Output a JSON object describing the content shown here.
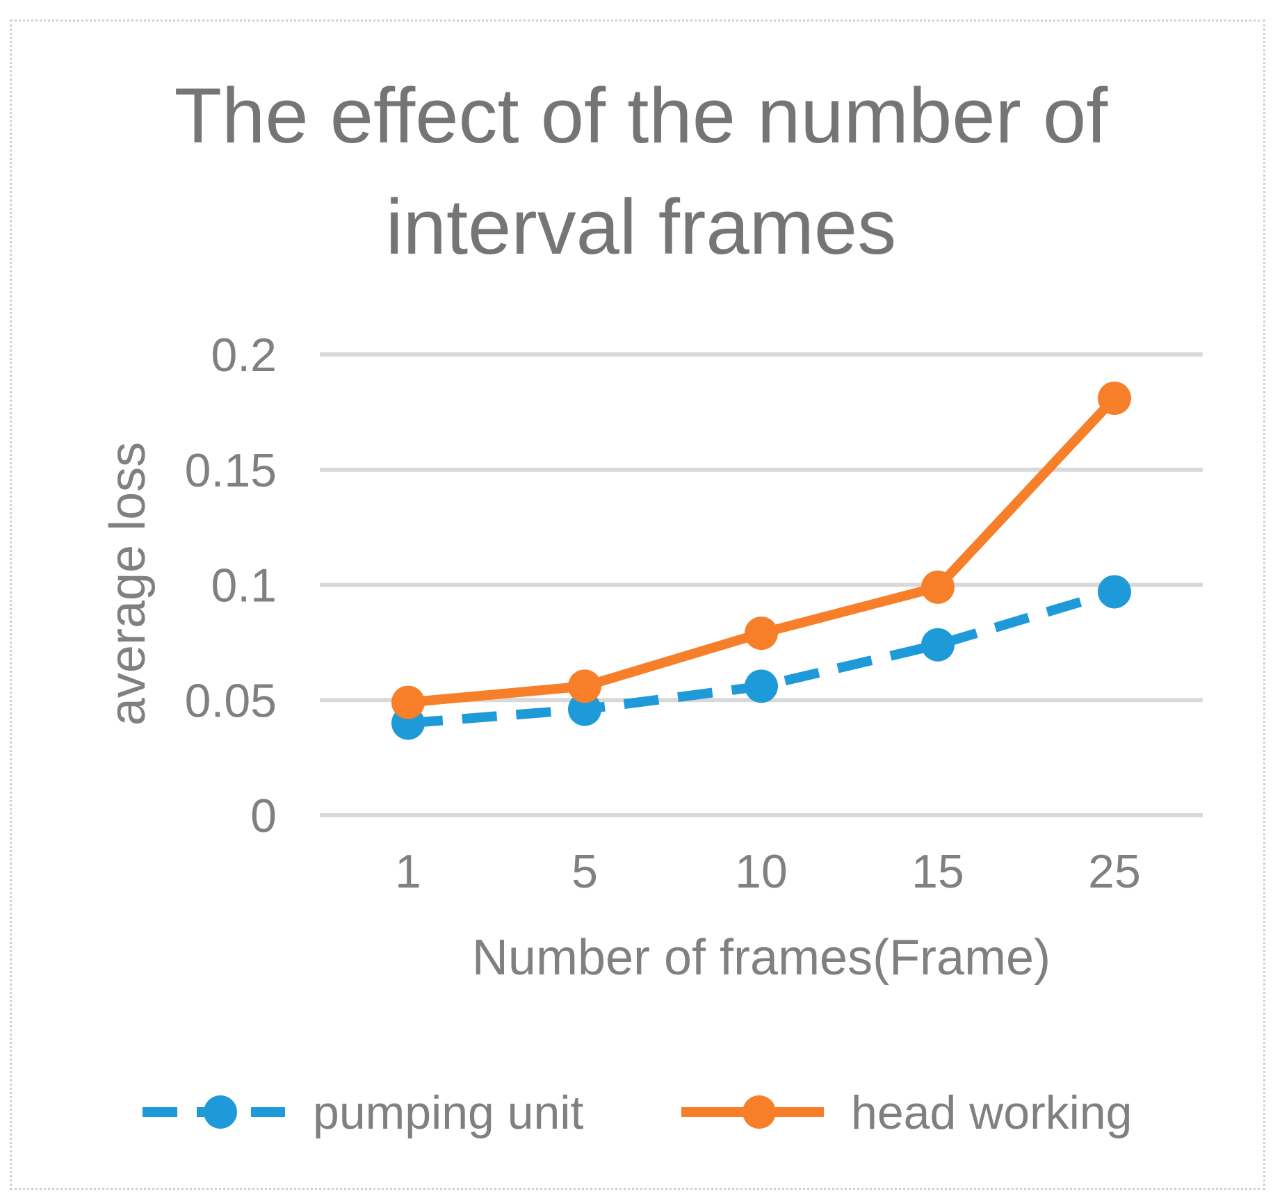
{
  "chart_data": {
    "type": "line",
    "title": "The effect of the number of interval frames",
    "title_lines": [
      "The effect of the number of",
      "interval frames"
    ],
    "xlabel": "Number of frames(Frame)",
    "ylabel": "average  loss",
    "categories": [
      "1",
      "5",
      "10",
      "15",
      "25"
    ],
    "ylim": [
      0,
      0.2
    ],
    "yticks": [
      "0",
      "0.05",
      "0.1",
      "0.15",
      "0.2"
    ],
    "grid": true,
    "legend_position": "bottom",
    "series": [
      {
        "name": "pumping unit",
        "values": [
          0.04,
          0.046,
          0.056,
          0.074,
          0.097
        ],
        "color": "#1f9ad9",
        "dashed": true
      },
      {
        "name": "head working",
        "values": [
          0.049,
          0.056,
          0.079,
          0.099,
          0.181
        ],
        "color": "#f77f2a",
        "dashed": false
      }
    ]
  }
}
